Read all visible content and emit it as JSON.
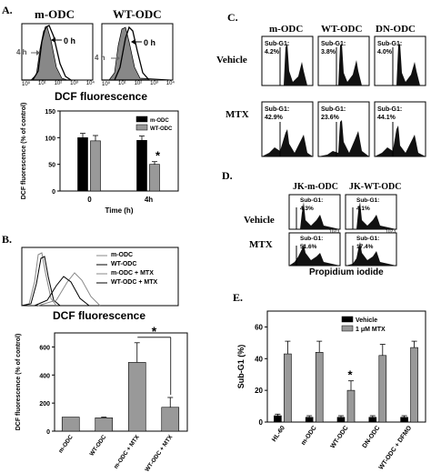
{
  "panels": {
    "A": {
      "label": "A.",
      "hist_titles": [
        "m-ODC",
        "WT-ODC"
      ],
      "hist_time_labels": [
        "4 h",
        "0 h"
      ],
      "xlabel": "DCF fluorescence",
      "x_ticks": [
        "10⁰",
        "10¹",
        "10²",
        "10³",
        "10⁴"
      ]
    },
    "B": {
      "label": "B.",
      "legend": [
        "m-ODC",
        "WT-ODC",
        "m-ODC + MTX",
        "WT-ODC + MTX"
      ],
      "xlabel": "DCF fluorescence"
    },
    "C": {
      "label": "C.",
      "col_titles": [
        "m-ODC",
        "WT-ODC",
        "DN-ODC"
      ],
      "rows": [
        {
          "label": "Vehicle",
          "values": [
            "4.2%",
            "3.8%",
            "4.0%"
          ]
        },
        {
          "label": "MTX",
          "values": [
            "42.9%",
            "23.6%",
            "44.1%"
          ]
        }
      ],
      "subg1": "Sub-G1:"
    },
    "D": {
      "label": "D.",
      "col_titles": [
        "JK-m-ODC",
        "JK-WT-ODC"
      ],
      "rows": [
        {
          "label": "Vehicle",
          "values": [
            "4.3%",
            "4.1%"
          ]
        },
        {
          "label": "MTX",
          "values": [
            "51.6%",
            "17.4%"
          ]
        }
      ],
      "subg1": "Sub-G1:",
      "xlabel": "Propidium iodide",
      "axis_end": "1023"
    },
    "E": {
      "label": "E."
    }
  },
  "chart_data": [
    {
      "type": "bar",
      "panel": "A",
      "categories": [
        "0",
        "4h"
      ],
      "xlabel": "Time (h)",
      "ylabel": "DCF fluorescence (% of control)",
      "ylim": [
        0,
        150
      ],
      "yticks": [
        0,
        50,
        100,
        150
      ],
      "series": [
        {
          "name": "m-ODC",
          "values": [
            100,
            95
          ],
          "errors": [
            8,
            8
          ],
          "color": "#000000"
        },
        {
          "name": "WT-ODC",
          "values": [
            94,
            50
          ],
          "errors": [
            10,
            5
          ],
          "color": "#999999"
        }
      ],
      "annotations": [
        {
          "category": "4h",
          "text": "*"
        }
      ]
    },
    {
      "type": "bar",
      "panel": "B",
      "categories": [
        "m-ODC",
        "WT-ODC",
        "m-ODC + MTX",
        "WT-ODC + MTX"
      ],
      "ylabel": "DCF fluorescence (% of control)",
      "ylim": [
        0,
        700
      ],
      "yticks": [
        0,
        200,
        400,
        600
      ],
      "values": [
        100,
        95,
        490,
        170
      ],
      "errors": [
        0,
        5,
        140,
        70
      ],
      "color": "#999999",
      "annotations": [
        {
          "between": [
            "m-ODC + MTX",
            "WT-ODC + MTX"
          ],
          "text": "*"
        }
      ]
    },
    {
      "type": "bar",
      "panel": "E",
      "categories": [
        "HL-60",
        "m-ODC",
        "WT-ODC",
        "DN-ODC",
        "WT-ODC + DFMO"
      ],
      "ylabel": "Sub-G1 (%)",
      "ylim": [
        0,
        70
      ],
      "yticks": [
        0,
        20,
        40,
        60
      ],
      "series": [
        {
          "name": "Vehicle",
          "values": [
            4,
            3,
            3,
            3,
            3
          ],
          "errors": [
            1,
            1,
            1,
            1,
            1
          ],
          "color": "#000000"
        },
        {
          "name": "1 μM MTX",
          "values": [
            43,
            44,
            20,
            42,
            47
          ],
          "errors": [
            8,
            7,
            6,
            7,
            4
          ],
          "color": "#999999"
        }
      ],
      "annotations": [
        {
          "category": "WT-ODC",
          "text": "*"
        }
      ]
    }
  ]
}
